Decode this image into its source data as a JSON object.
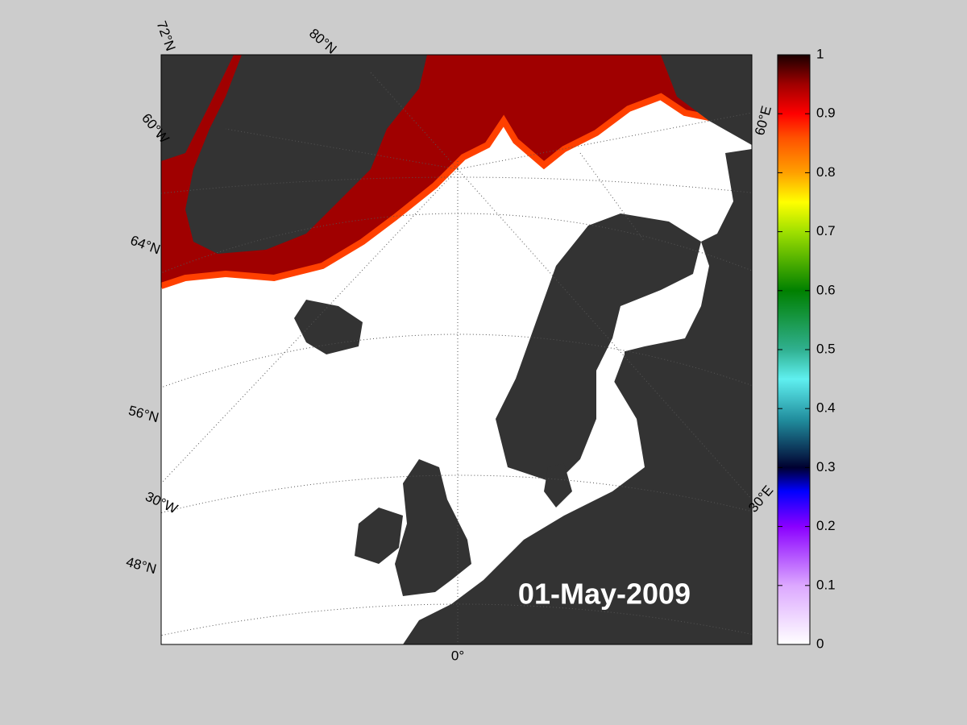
{
  "date_label": "01-May-2009",
  "graticule_labels": [
    "72°N",
    "80°N",
    "60°W",
    "64°N",
    "56°N",
    "30°W",
    "48°N",
    "0°",
    "30°E",
    "60°E"
  ],
  "colorbar": {
    "lim": [
      0,
      1
    ],
    "ticks": [
      0,
      0.1,
      0.2,
      0.3,
      0.4,
      0.5,
      0.6,
      0.7,
      0.8,
      0.9,
      1
    ]
  }
}
